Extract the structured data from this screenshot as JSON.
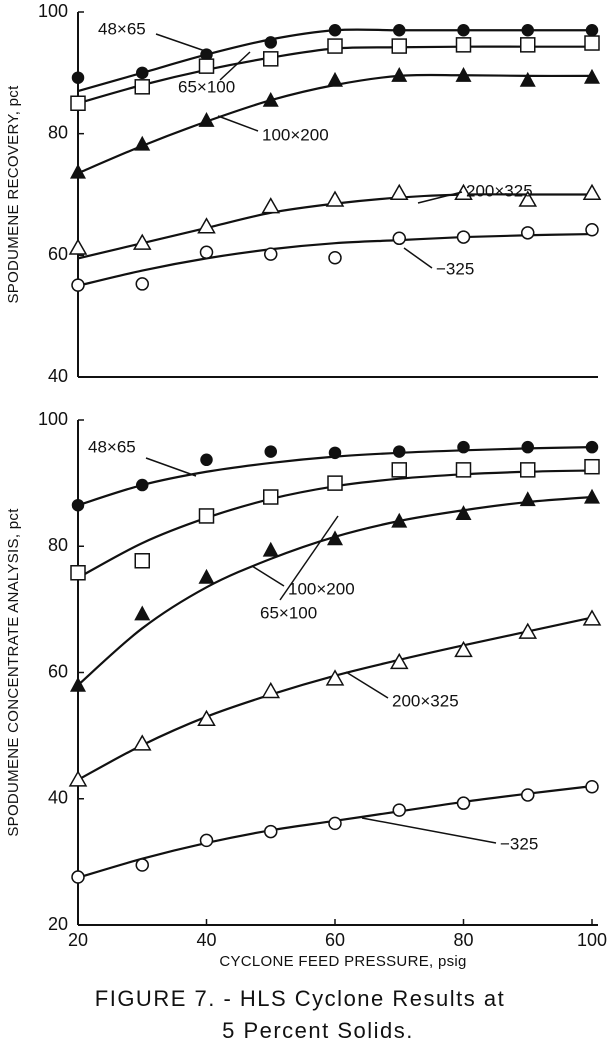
{
  "chart_data": [
    {
      "type": "scatter-fit",
      "ylabel": "SPODUMENE RECOVERY, pct",
      "x": [
        20,
        30,
        40,
        50,
        60,
        70,
        80,
        90,
        100
      ],
      "xlim": [
        20,
        100
      ],
      "ylim": [
        40,
        100
      ],
      "yticks": [
        40,
        60,
        80,
        100
      ],
      "series": [
        {
          "name": "48×65",
          "color": "#111111",
          "marker": "filled-circle",
          "values": [
            89.2,
            90,
            93,
            95,
            97,
            97,
            97,
            97,
            97
          ],
          "fit": [
            87,
            90,
            93,
            95.5,
            97,
            97,
            97,
            97,
            97
          ]
        },
        {
          "name": "65×100",
          "color": "#111111",
          "marker": "open-square",
          "values": [
            85,
            87.7,
            91.1,
            92.3,
            94.4,
            94.4,
            94.6,
            94.6,
            94.9
          ],
          "fit": [
            85,
            88,
            90.5,
            92.5,
            94,
            94.2,
            94.3,
            94.3,
            94.3
          ]
        },
        {
          "name": "100×200",
          "color": "#111111",
          "marker": "filled-triangle",
          "values": [
            73.7,
            78.3,
            82.2,
            85.5,
            88.8,
            89.6,
            89.6,
            88.8,
            89.3
          ],
          "fit": [
            73.5,
            78,
            82,
            85.5,
            88,
            89.5,
            89.6,
            89.5,
            89.5
          ]
        },
        {
          "name": "200×325",
          "color": "#111111",
          "marker": "open-triangle",
          "values": [
            61.2,
            62,
            64.7,
            68,
            69.1,
            70.2,
            70.2,
            69.1,
            70.2
          ],
          "fit": [
            59.5,
            62,
            64.5,
            67,
            68.5,
            69.5,
            70,
            70,
            70
          ]
        },
        {
          "name": "−325",
          "color": "#111111",
          "marker": "open-circle",
          "values": [
            55.1,
            55.3,
            60.5,
            60.2,
            59.6,
            62.8,
            63,
            63.7,
            64.2
          ],
          "fit": [
            55,
            57.5,
            59.5,
            61,
            62,
            62.5,
            63,
            63.3,
            63.5
          ]
        }
      ]
    },
    {
      "type": "scatter-fit",
      "ylabel": "SPODUMENE CONCENTRATE ANALYSIS, pct",
      "xlabel": "CYCLONE FEED PRESSURE, psig",
      "x": [
        20,
        30,
        40,
        50,
        60,
        70,
        80,
        90,
        100
      ],
      "xlim": [
        20,
        100
      ],
      "xticks": [
        20,
        40,
        60,
        80,
        100
      ],
      "ylim": [
        20,
        100
      ],
      "yticks": [
        20,
        40,
        60,
        80,
        100
      ],
      "series": [
        {
          "name": "48×65",
          "color": "#111111",
          "marker": "filled-circle",
          "values": [
            86.5,
            89.7,
            93.7,
            95,
            94.8,
            95,
            95.7,
            95.7,
            95.7
          ],
          "fit": [
            86.5,
            89.7,
            91.8,
            93.2,
            94.2,
            94.8,
            95.2,
            95.5,
            95.7
          ]
        },
        {
          "name": "65×100",
          "color": "#111111",
          "marker": "open-square",
          "values": [
            75.8,
            77.7,
            84.8,
            87.8,
            90,
            92.1,
            92.1,
            92.1,
            92.6
          ],
          "fit": [
            75,
            80.5,
            84.5,
            87.5,
            89.5,
            90.7,
            91.4,
            91.8,
            92
          ]
        },
        {
          "name": "100×200",
          "color": "#111111",
          "marker": "filled-triangle",
          "values": [
            58,
            69.3,
            75.1,
            79.4,
            81.2,
            84,
            85.2,
            87.4,
            87.8
          ],
          "fit": [
            58,
            67,
            73.5,
            78,
            81.5,
            84,
            85.7,
            87,
            87.8
          ]
        },
        {
          "name": "200×325",
          "color": "#111111",
          "marker": "open-triangle",
          "values": [
            43,
            48.7,
            52.6,
            57,
            59,
            61.6,
            63.5,
            66.4,
            68.5
          ],
          "fit": [
            43,
            48.5,
            53,
            56.5,
            59.5,
            62,
            64.3,
            66.5,
            68.7
          ]
        },
        {
          "name": "−325",
          "color": "#111111",
          "marker": "open-circle",
          "values": [
            27.6,
            29.5,
            33.4,
            34.8,
            36.1,
            38.2,
            39.3,
            40.6,
            41.9
          ],
          "fit": [
            27.5,
            30.5,
            33,
            35,
            36.5,
            38,
            39.5,
            40.8,
            42
          ]
        }
      ]
    }
  ],
  "caption": [
    "FIGURE 7. - HLS Cyclone Results at",
    "5 Percent Solids."
  ]
}
